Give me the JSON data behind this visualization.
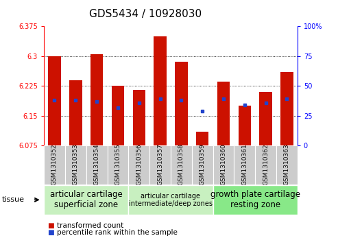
{
  "title": "GDS5434 / 10928030",
  "samples": [
    "GSM1310352",
    "GSM1310353",
    "GSM1310354",
    "GSM1310355",
    "GSM1310356",
    "GSM1310357",
    "GSM1310358",
    "GSM1310359",
    "GSM1310360",
    "GSM1310361",
    "GSM1310362",
    "GSM1310363"
  ],
  "bar_values": [
    6.3,
    6.24,
    6.305,
    6.225,
    6.215,
    6.35,
    6.285,
    6.11,
    6.235,
    6.175,
    6.21,
    6.26
  ],
  "percentile_values": [
    38,
    38,
    37,
    32,
    36,
    39,
    38,
    29,
    39,
    34,
    36,
    39
  ],
  "y_min": 6.075,
  "y_max": 6.375,
  "y_ticks": [
    6.075,
    6.15,
    6.225,
    6.3,
    6.375
  ],
  "y2_ticks": [
    0,
    25,
    50,
    75,
    100
  ],
  "bar_color": "#cc1100",
  "dot_color": "#2244cc",
  "bar_width": 0.6,
  "groups": [
    {
      "label": "articular cartilage\nsuperficial zone",
      "s": 0,
      "e": 3,
      "color": "#c8f0c0",
      "fontsize": 8.5
    },
    {
      "label": "articular cartilage\nintermediate/deep zones",
      "s": 4,
      "e": 7,
      "color": "#c8f0c0",
      "fontsize": 7.0
    },
    {
      "label": "growth plate cartilage\nresting zone",
      "s": 8,
      "e": 11,
      "color": "#88e888",
      "fontsize": 8.5
    }
  ],
  "tissue_label": "tissue",
  "legend_items": [
    {
      "color": "#cc1100",
      "label": "transformed count"
    },
    {
      "color": "#2244cc",
      "label": "percentile rank within the sample"
    }
  ],
  "bg_color": "#ffffff",
  "plot_bg": "#ffffff",
  "tick_area_bg": "#cccccc",
  "title_fontsize": 11,
  "ytick_fontsize": 7,
  "sample_fontsize": 6.5,
  "legend_fontsize": 7.5
}
